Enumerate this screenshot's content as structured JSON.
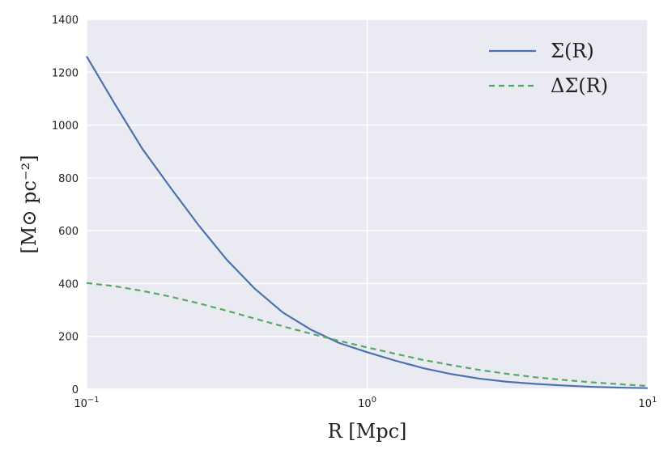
{
  "chart_data": {
    "type": "line",
    "xscale": "log",
    "xlim": [
      0.1,
      10
    ],
    "ylim": [
      0,
      1400
    ],
    "grid": true,
    "legend_position": "top-right",
    "xlabel": "R [Mpc]",
    "ylabel": "[M⊙ pc⁻²]",
    "x_ticks": [
      {
        "value": 0.1,
        "base": "10",
        "exp": "−1"
      },
      {
        "value": 1,
        "base": "10",
        "exp": "0"
      },
      {
        "value": 10,
        "base": "10",
        "exp": "1"
      }
    ],
    "y_ticks": [
      0,
      200,
      400,
      600,
      800,
      1000,
      1200,
      1400
    ],
    "series": [
      {
        "name": "Σ(R)",
        "color": "#4c72b0",
        "dash": "solid",
        "x": [
          0.1,
          0.126,
          0.158,
          0.2,
          0.251,
          0.316,
          0.398,
          0.501,
          0.631,
          0.794,
          1.0,
          1.26,
          1.58,
          2.0,
          2.51,
          3.16,
          3.98,
          5.01,
          6.31,
          7.94,
          10
        ],
        "y": [
          1260,
          1080,
          910,
          760,
          620,
          490,
          380,
          290,
          225,
          175,
          140,
          108,
          80,
          57,
          40,
          28,
          20,
          14,
          9,
          6,
          4
        ]
      },
      {
        "name": "ΔΣ(R)",
        "color": "#55a868",
        "dash": "dashed",
        "x": [
          0.1,
          0.126,
          0.158,
          0.2,
          0.251,
          0.316,
          0.398,
          0.501,
          0.631,
          0.794,
          1.0,
          1.26,
          1.58,
          2.0,
          2.51,
          3.16,
          3.98,
          5.01,
          6.31,
          7.94,
          10
        ],
        "y": [
          402,
          390,
          372,
          350,
          325,
          297,
          267,
          238,
          210,
          183,
          158,
          134,
          111,
          91,
          73,
          58,
          45,
          35,
          26,
          19,
          12
        ]
      }
    ]
  }
}
